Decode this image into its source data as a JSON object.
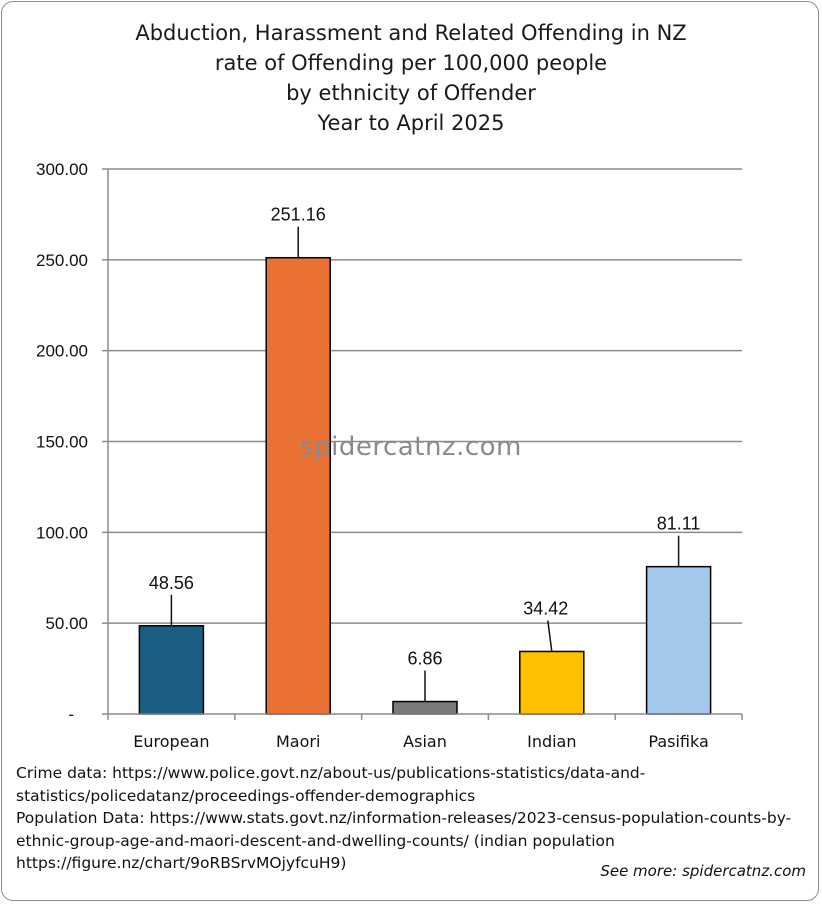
{
  "chart_data": {
    "type": "bar",
    "title_lines": [
      "Abduction, Harassment and Related Offending in NZ",
      "rate of Offending per 100,000 people",
      "by ethnicity of Offender",
      "Year to April 2025"
    ],
    "categories": [
      "European",
      "Maori",
      "Asian",
      "Indian",
      "Pasifika"
    ],
    "values": [
      48.56,
      251.16,
      6.86,
      34.42,
      81.11
    ],
    "value_labels": [
      "48.56",
      "251.16",
      "6.86",
      "34.42",
      "81.11"
    ],
    "colors": [
      "#1b5e82",
      "#ea7134",
      "#7a7a7a",
      "#ffc000",
      "#a4c8ec"
    ],
    "ylim": [
      0,
      300
    ],
    "y_ticks": [
      0,
      50,
      100,
      150,
      200,
      250,
      300
    ],
    "y_tick_labels": [
      "-",
      "50.00",
      "100.00",
      "150.00",
      "200.00",
      "250.00",
      "300.00"
    ],
    "grid": true,
    "legend": "none",
    "xlabel": "",
    "ylabel": ""
  },
  "watermark": "spidercatnz.com",
  "source_lines": [
    "Crime data: https://www.police.govt.nz/about-us/publications-statistics/data-and-",
    "statistics/policedatanz/proceedings-offender-demographics",
    "Population Data: https://www.stats.govt.nz/information-releases/2023-census-population-counts-by-",
    "ethnic-group-age-and-maori-descent-and-dwelling-counts/ (indian population",
    "https://figure.nz/chart/9oRBSrvMOjyfcuH9)"
  ],
  "footer": "See more: spidercatnz.com"
}
